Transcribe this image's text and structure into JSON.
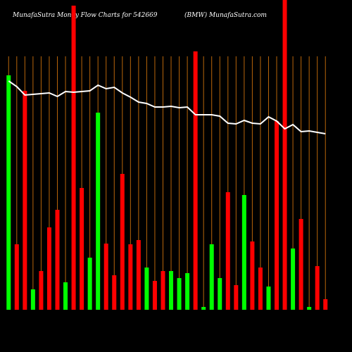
{
  "chart_data": {
    "type": "bar",
    "title": "MunafaSutra  Money Flow  Charts for 542669",
    "subtitle": "(BMW) MunafaSutra.com",
    "background": "#000000",
    "grid": true,
    "grid_color": "#b8650a",
    "categories": [
      null,
      null,
      null,
      null,
      null,
      null,
      null,
      null,
      null,
      null,
      null,
      null,
      null,
      null,
      null,
      null,
      null,
      null,
      null,
      null,
      null,
      null,
      null,
      null,
      null,
      null,
      null,
      null,
      null,
      null,
      null,
      null,
      null,
      null,
      null,
      null,
      null,
      null,
      null,
      null
    ],
    "ylim": [
      0,
      440
    ],
    "series": [
      {
        "type": "bar",
        "values": [
          333,
          93,
          311,
          29,
          55,
          117,
          142,
          39,
          432,
          173,
          74,
          280,
          94,
          49,
          193,
          93,
          99,
          60,
          41,
          55,
          55,
          45,
          52,
          367,
          4,
          93,
          45,
          167,
          35,
          163,
          97,
          60,
          33,
          268,
          440,
          87,
          129,
          4,
          62,
          15
        ],
        "colors": [
          "#00ff00",
          "#ff0000",
          "#ff0000",
          "#00ff00",
          "#ff0000",
          "#ff0000",
          "#ff0000",
          "#00ff00",
          "#ff0000",
          "#ff0000",
          "#00ff00",
          "#00ff00",
          "#ff0000",
          "#ff0000",
          "#ff0000",
          "#ff0000",
          "#ff0000",
          "#00ff00",
          "#ff0000",
          "#ff0000",
          "#00ff00",
          "#00ff00",
          "#00ff00",
          "#ff0000",
          "#00ff00",
          "#00ff00",
          "#00ff00",
          "#ff0000",
          "#ff0000",
          "#00ff00",
          "#ff0000",
          "#ff0000",
          "#00ff00",
          "#ff0000",
          "#ff0000",
          "#00ff00",
          "#ff0000",
          "#00ff00",
          "#ff0000",
          "#ff0000"
        ]
      },
      {
        "type": "line",
        "color": "#ffffff",
        "values": [
          325,
          317,
          305,
          306,
          307,
          308,
          303,
          310,
          309,
          310,
          311,
          319,
          314,
          316,
          308,
          302,
          295,
          293,
          288,
          288,
          289,
          287,
          288,
          277,
          277,
          277,
          275,
          265,
          264,
          269,
          265,
          264,
          274,
          268,
          257,
          263,
          253,
          254,
          252,
          250
        ]
      }
    ]
  }
}
